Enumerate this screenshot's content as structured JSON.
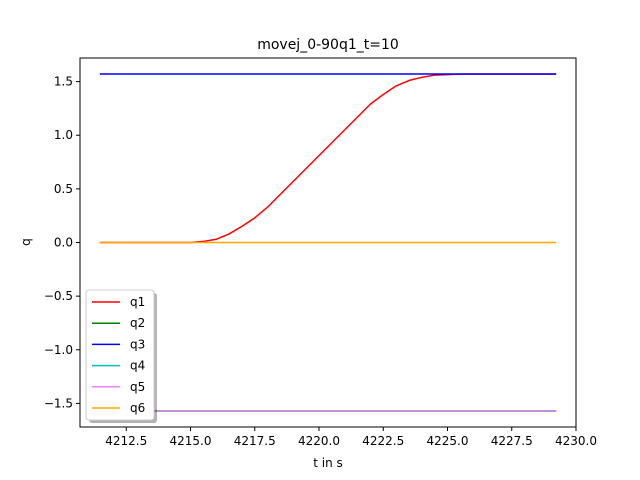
{
  "chart_data": {
    "type": "line",
    "title": "movej_0-90q1_t=10",
    "xlabel": "t in s",
    "ylabel": "q",
    "xlim": [
      4210.7,
      4230.0
    ],
    "ylim": [
      -1.72,
      1.72
    ],
    "xticks": [
      4212.5,
      4215.0,
      4217.5,
      4220.0,
      4222.5,
      4225.0,
      4227.5,
      4230.0
    ],
    "xtick_labels": [
      "4212.5",
      "4215.0",
      "4217.5",
      "4220.0",
      "4222.5",
      "4225.0",
      "4227.5",
      "4230.0"
    ],
    "yticks": [
      1.5,
      1.0,
      0.5,
      0.0,
      -0.5,
      -1.0,
      -1.5
    ],
    "ytick_labels": [
      "1.5",
      "1.0",
      "0.5",
      "0.0",
      "−0.5",
      "−1.0",
      "−1.5"
    ],
    "grid": false,
    "legend_position": "lower-left",
    "series": [
      {
        "name": "q1",
        "color": "#ff0000",
        "x": [
          4211.5,
          4214.0,
          4215.0,
          4215.5,
          4216.0,
          4216.5,
          4217.0,
          4217.5,
          4218.0,
          4218.5,
          4219.0,
          4219.5,
          4220.0,
          4220.5,
          4221.0,
          4221.5,
          4222.0,
          4222.5,
          4223.0,
          4223.5,
          4224.0,
          4224.5,
          4225.0,
          4225.5,
          4226.0,
          4229.2
        ],
        "y": [
          0.0,
          0.0,
          0.0,
          0.01,
          0.03,
          0.08,
          0.15,
          0.23,
          0.33,
          0.45,
          0.57,
          0.69,
          0.81,
          0.93,
          1.05,
          1.17,
          1.29,
          1.38,
          1.46,
          1.51,
          1.54,
          1.56,
          1.565,
          1.57,
          1.57,
          1.57
        ]
      },
      {
        "name": "q2",
        "color": "#008000",
        "x": [
          4211.5,
          4229.2
        ],
        "y": [
          -1.571,
          -1.571
        ]
      },
      {
        "name": "q3",
        "color": "#0000ff",
        "x": [
          4211.5,
          4229.2
        ],
        "y": [
          1.571,
          1.571
        ]
      },
      {
        "name": "q4",
        "color": "#00bfbf",
        "x": [
          4211.5,
          4229.2
        ],
        "y": [
          -1.571,
          -1.571
        ]
      },
      {
        "name": "q5",
        "color": "#ee82ee",
        "x": [
          4211.5,
          4229.2
        ],
        "y": [
          -1.571,
          -1.571
        ]
      },
      {
        "name": "q6",
        "color": "#ffa500",
        "x": [
          4211.5,
          4229.2
        ],
        "y": [
          0.0,
          0.0
        ]
      }
    ]
  }
}
